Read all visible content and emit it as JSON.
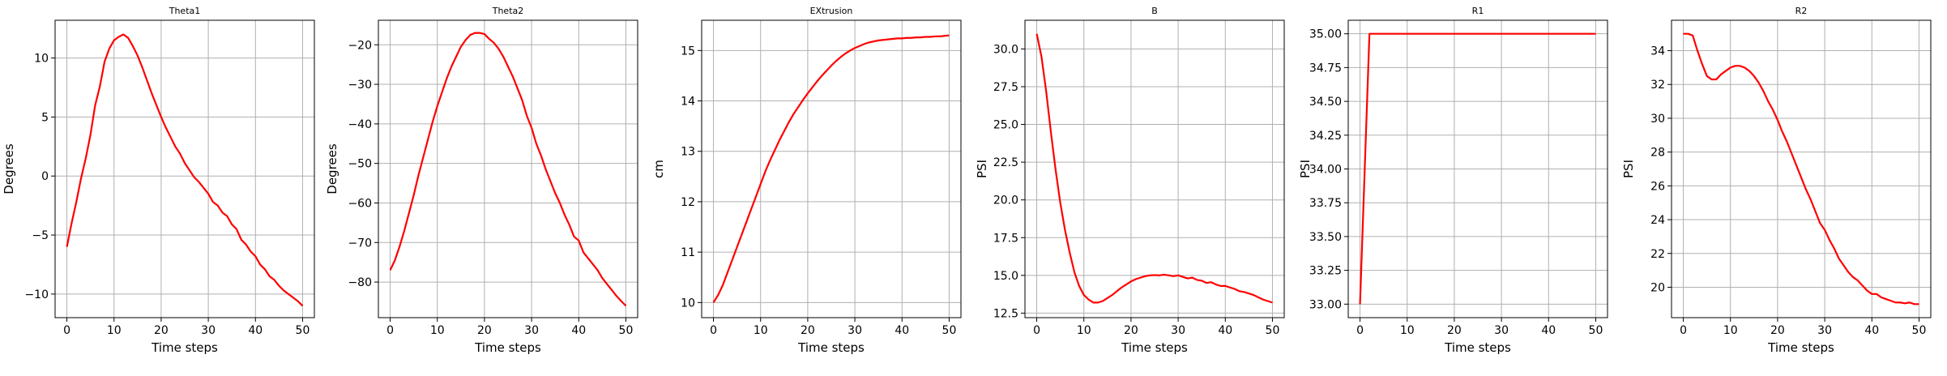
{
  "figure": {
    "background": "#ffffff",
    "line_color": "#ff0000",
    "grid_color": "#b0b0b0"
  },
  "chart_data": [
    {
      "type": "line",
      "title": "Theta1",
      "xlabel": "Time steps",
      "ylabel": "Degrees",
      "xlim": [
        -2.5,
        52.5
      ],
      "ylim": [
        -12,
        13.2
      ],
      "xticks": [
        0,
        10,
        20,
        30,
        40,
        50
      ],
      "xtick_labels": [
        "0",
        "10",
        "20",
        "30",
        "40",
        "50"
      ],
      "yticks": [
        -10,
        -5,
        0,
        5,
        10
      ],
      "ytick_labels": [
        "−10",
        "−5",
        "0",
        "5",
        "10"
      ],
      "grid": true,
      "series": [
        {
          "color": "#ff0000",
          "x": [
            0,
            1,
            2,
            3,
            4,
            5,
            6,
            7,
            8,
            9,
            10,
            11,
            12,
            13,
            14,
            15,
            16,
            17,
            18,
            19,
            20,
            21,
            22,
            23,
            24,
            25,
            26,
            27,
            28,
            29,
            30,
            31,
            32,
            33,
            34,
            35,
            36,
            37,
            38,
            39,
            40,
            41,
            42,
            43,
            44,
            45,
            46,
            47,
            48,
            49,
            50
          ],
          "y": [
            -6,
            -4,
            -2.2,
            -0.2,
            1.5,
            3.5,
            6,
            7.6,
            9.7,
            10.8,
            11.5,
            11.8,
            12,
            11.7,
            11,
            10.2,
            9.2,
            8.1,
            7,
            6,
            5,
            4.1,
            3.3,
            2.5,
            1.9,
            1.1,
            0.5,
            -0.1,
            -0.5,
            -1,
            -1.5,
            -2.2,
            -2.5,
            -3.1,
            -3.4,
            -4.1,
            -4.5,
            -5.4,
            -5.8,
            -6.4,
            -6.8,
            -7.5,
            -7.9,
            -8.5,
            -8.8,
            -9.3,
            -9.7,
            -10,
            -10.3,
            -10.6,
            -11
          ]
        }
      ]
    },
    {
      "type": "line",
      "title": "Theta2",
      "xlabel": "Time steps",
      "ylabel": "Degrees",
      "xlim": [
        -2.5,
        52.5
      ],
      "ylim": [
        -89,
        -13.8
      ],
      "xticks": [
        0,
        10,
        20,
        30,
        40,
        50
      ],
      "xtick_labels": [
        "0",
        "10",
        "20",
        "30",
        "40",
        "50"
      ],
      "yticks": [
        -80,
        -70,
        -60,
        -50,
        -40,
        -30,
        -20
      ],
      "ytick_labels": [
        "−80",
        "−70",
        "−60",
        "−50",
        "−40",
        "−30",
        "−20"
      ],
      "grid": true,
      "series": [
        {
          "color": "#ff0000",
          "x": [
            0,
            1,
            2,
            3,
            4,
            5,
            6,
            7,
            8,
            9,
            10,
            11,
            12,
            13,
            14,
            15,
            16,
            17,
            18,
            19,
            20,
            21,
            22,
            23,
            24,
            25,
            26,
            27,
            28,
            29,
            30,
            31,
            32,
            33,
            34,
            35,
            36,
            37,
            38,
            39,
            40,
            41,
            42,
            43,
            44,
            45,
            46,
            47,
            48,
            49,
            50
          ],
          "y": [
            -77,
            -74.5,
            -71,
            -67,
            -62.5,
            -58,
            -53,
            -48.5,
            -44,
            -39.5,
            -35.5,
            -32,
            -28.5,
            -25.5,
            -23,
            -20.5,
            -18.8,
            -17.5,
            -17,
            -17,
            -17.3,
            -18.5,
            -19.5,
            -21,
            -23,
            -25.5,
            -28,
            -31,
            -34,
            -38,
            -41,
            -45,
            -48,
            -51.5,
            -54.5,
            -57.5,
            -60,
            -63,
            -65.5,
            -68.5,
            -69.5,
            -72.5,
            -74,
            -75.5,
            -77,
            -79,
            -80.5,
            -82,
            -83.5,
            -84.8,
            -86
          ]
        }
      ]
    },
    {
      "type": "line",
      "title": "EXtrusion",
      "xlabel": "Time steps",
      "ylabel": "cm",
      "xlim": [
        -2.5,
        52.5
      ],
      "ylim": [
        9.7,
        15.6
      ],
      "xticks": [
        0,
        10,
        20,
        30,
        40,
        50
      ],
      "xtick_labels": [
        "0",
        "10",
        "20",
        "30",
        "40",
        "50"
      ],
      "yticks": [
        10,
        11,
        12,
        13,
        14,
        15
      ],
      "ytick_labels": [
        "10",
        "11",
        "12",
        "13",
        "14",
        "15"
      ],
      "grid": true,
      "series": [
        {
          "color": "#ff0000",
          "x": [
            0,
            1,
            2,
            3,
            4,
            5,
            6,
            7,
            8,
            9,
            10,
            11,
            12,
            13,
            14,
            15,
            16,
            17,
            18,
            19,
            20,
            21,
            22,
            23,
            24,
            25,
            26,
            27,
            28,
            29,
            30,
            31,
            32,
            33,
            34,
            35,
            36,
            37,
            38,
            39,
            40,
            41,
            42,
            43,
            44,
            45,
            46,
            47,
            48,
            49,
            50
          ],
          "y": [
            10,
            10.15,
            10.35,
            10.6,
            10.85,
            11.1,
            11.35,
            11.6,
            11.85,
            12.1,
            12.35,
            12.6,
            12.82,
            13.02,
            13.22,
            13.4,
            13.58,
            13.74,
            13.88,
            14.02,
            14.15,
            14.27,
            14.39,
            14.5,
            14.6,
            14.7,
            14.79,
            14.87,
            14.94,
            15,
            15.05,
            15.09,
            15.13,
            15.16,
            15.18,
            15.2,
            15.21,
            15.22,
            15.23,
            15.24,
            15.24,
            15.25,
            15.25,
            15.26,
            15.26,
            15.27,
            15.27,
            15.28,
            15.28,
            15.29,
            15.3
          ]
        }
      ]
    },
    {
      "type": "line",
      "title": "B",
      "xlabel": "Time steps",
      "ylabel": "PSI",
      "xlim": [
        -2.5,
        52.5
      ],
      "ylim": [
        12.2,
        31.9
      ],
      "xticks": [
        0,
        10,
        20,
        30,
        40,
        50
      ],
      "xtick_labels": [
        "0",
        "10",
        "20",
        "30",
        "40",
        "50"
      ],
      "yticks": [
        12.5,
        15,
        17.5,
        20,
        22.5,
        25,
        27.5,
        30
      ],
      "ytick_labels": [
        "12.5",
        "15.0",
        "17.5",
        "20.0",
        "22.5",
        "25.0",
        "27.5",
        "30.0"
      ],
      "grid": true,
      "series": [
        {
          "color": "#ff0000",
          "x": [
            0,
            1,
            2,
            3,
            4,
            5,
            6,
            7,
            8,
            9,
            10,
            11,
            12,
            13,
            14,
            15,
            16,
            17,
            18,
            19,
            20,
            21,
            22,
            23,
            24,
            25,
            26,
            27,
            28,
            29,
            30,
            31,
            32,
            33,
            34,
            35,
            36,
            37,
            38,
            39,
            40,
            41,
            42,
            43,
            44,
            45,
            46,
            47,
            48,
            49,
            50
          ],
          "y": [
            31,
            29.5,
            27.2,
            24.5,
            22,
            19.8,
            18,
            16.5,
            15.2,
            14.3,
            13.7,
            13.4,
            13.2,
            13.2,
            13.3,
            13.5,
            13.7,
            13.95,
            14.2,
            14.4,
            14.6,
            14.75,
            14.85,
            14.95,
            15,
            15.02,
            15,
            15.05,
            15,
            14.95,
            15,
            14.9,
            14.8,
            14.85,
            14.7,
            14.65,
            14.5,
            14.55,
            14.4,
            14.3,
            14.3,
            14.2,
            14.1,
            13.95,
            13.9,
            13.8,
            13.7,
            13.55,
            13.4,
            13.3,
            13.2
          ]
        }
      ]
    },
    {
      "type": "line",
      "title": "R1",
      "xlabel": "Time steps",
      "ylabel": "PSI",
      "xlim": [
        -2.5,
        52.5
      ],
      "ylim": [
        32.9,
        35.1
      ],
      "xticks": [
        0,
        10,
        20,
        30,
        40,
        50
      ],
      "xtick_labels": [
        "0",
        "10",
        "20",
        "30",
        "40",
        "50"
      ],
      "yticks": [
        33,
        33.25,
        33.5,
        33.75,
        34,
        34.25,
        34.5,
        34.75,
        35
      ],
      "ytick_labels": [
        "33.00",
        "33.25",
        "33.50",
        "33.75",
        "34.00",
        "34.25",
        "34.50",
        "34.75",
        "35.00"
      ],
      "grid": true,
      "series": [
        {
          "color": "#ff0000",
          "x": [
            0,
            2,
            50
          ],
          "y": [
            33,
            35,
            35
          ]
        }
      ]
    },
    {
      "type": "line",
      "title": "R2",
      "xlabel": "Time steps",
      "ylabel": "PSI",
      "xlim": [
        -2.5,
        52.5
      ],
      "ylim": [
        18.2,
        35.8
      ],
      "xticks": [
        0,
        10,
        20,
        30,
        40,
        50
      ],
      "xtick_labels": [
        "0",
        "10",
        "20",
        "30",
        "40",
        "50"
      ],
      "yticks": [
        20,
        22,
        24,
        26,
        28,
        30,
        32,
        34
      ],
      "ytick_labels": [
        "20",
        "22",
        "24",
        "26",
        "28",
        "30",
        "32",
        "34"
      ],
      "grid": true,
      "series": [
        {
          "color": "#ff0000",
          "x": [
            0,
            1,
            2,
            3,
            4,
            5,
            6,
            7,
            8,
            9,
            10,
            11,
            12,
            13,
            14,
            15,
            16,
            17,
            18,
            19,
            20,
            21,
            22,
            23,
            24,
            25,
            26,
            27,
            28,
            29,
            30,
            31,
            32,
            33,
            34,
            35,
            36,
            37,
            38,
            39,
            40,
            41,
            42,
            43,
            44,
            45,
            46,
            47,
            48,
            49,
            50
          ],
          "y": [
            35,
            35,
            34.9,
            34,
            33.2,
            32.5,
            32.3,
            32.3,
            32.6,
            32.8,
            33,
            33.1,
            33.1,
            33,
            32.8,
            32.5,
            32.1,
            31.6,
            31,
            30.5,
            29.9,
            29.2,
            28.6,
            27.9,
            27.2,
            26.5,
            25.8,
            25.2,
            24.5,
            23.8,
            23.4,
            22.8,
            22.3,
            21.7,
            21.3,
            20.9,
            20.6,
            20.4,
            20.1,
            19.8,
            19.6,
            19.6,
            19.4,
            19.3,
            19.2,
            19.1,
            19.1,
            19.05,
            19.1,
            19,
            19
          ]
        }
      ]
    }
  ]
}
